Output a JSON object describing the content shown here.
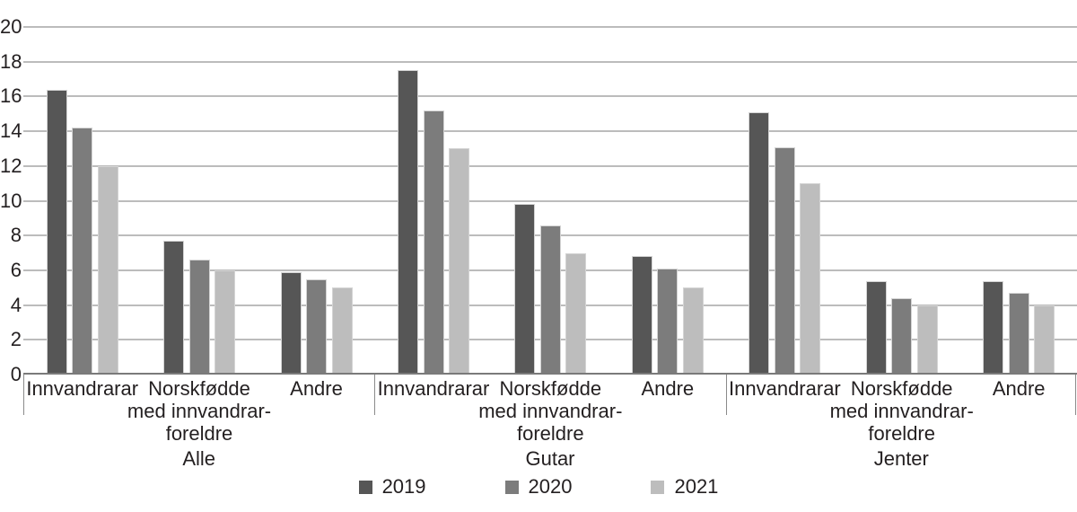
{
  "chart_data": {
    "type": "bar",
    "title": "",
    "y_axis": {
      "min": 0,
      "max": 20,
      "step": 2,
      "tick_labels": [
        "0",
        "2",
        "4",
        "6",
        "8",
        "10",
        "12",
        "14",
        "16",
        "18",
        "20"
      ]
    },
    "categories": [
      "Innvandrarar",
      "Norskfødde med innvandrar-foreldre",
      "Andre"
    ],
    "category_display_lines": [
      [
        "Innvandrarar"
      ],
      [
        "Norskfødde",
        "med innvandrar-",
        "foreldre"
      ],
      [
        "Andre"
      ]
    ],
    "series": [
      {
        "name": "2019",
        "color": "#565656"
      },
      {
        "name": "2020",
        "color": "#7c7c7c"
      },
      {
        "name": "2021",
        "color": "#bdbdbd"
      }
    ],
    "groups": [
      {
        "label": "Alle",
        "values": [
          [
            16.4,
            14.2,
            12.0
          ],
          [
            7.7,
            6.6,
            6.0
          ],
          [
            5.9,
            5.5,
            5.0
          ]
        ]
      },
      {
        "label": "Gutar",
        "values": [
          [
            17.5,
            15.2,
            13.0
          ],
          [
            9.8,
            8.6,
            7.0
          ],
          [
            6.8,
            6.1,
            5.0
          ]
        ]
      },
      {
        "label": "Jenter",
        "values": [
          [
            15.1,
            13.1,
            11.0
          ],
          [
            5.4,
            4.4,
            4.0
          ],
          [
            5.4,
            4.7,
            4.0
          ]
        ]
      }
    ],
    "legend": {
      "position": "bottom",
      "entries": [
        "2019",
        "2020",
        "2021"
      ]
    },
    "grid": "horizontal",
    "colors": {
      "gridline": "#bcbcbc",
      "axis": "#7a7a7a",
      "text": "#231f20",
      "background": "#ffffff",
      "bar_border": "#d4d4d4"
    }
  }
}
